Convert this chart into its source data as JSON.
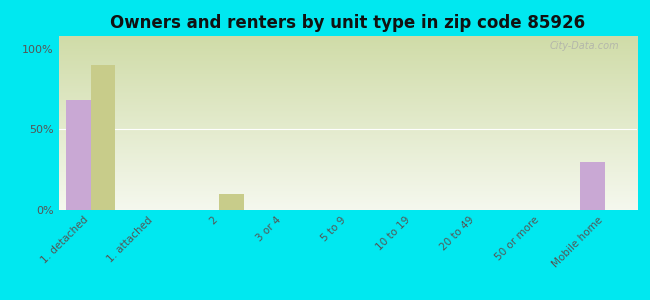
{
  "title": "Owners and renters by unit type in zip code 85926",
  "categories": [
    "1. detached",
    "1. attached",
    "2",
    "3 or 4",
    "5 to 9",
    "10 to 19",
    "20 to 49",
    "50 or more",
    "Mobile home"
  ],
  "owner_values": [
    68,
    0,
    0,
    0,
    0,
    0,
    0,
    0,
    30
  ],
  "renter_values": [
    90,
    0,
    10,
    0,
    0,
    0,
    0,
    0,
    0
  ],
  "owner_color": "#c9a8d4",
  "renter_color": "#c8cc8a",
  "background_outer": "#00e8f0",
  "plot_bg_top": "#dce8c0",
  "plot_bg_bottom": "#f5f8ee",
  "title_fontsize": 12,
  "ylabel_ticks": [
    0,
    50,
    100
  ],
  "ylabel_labels": [
    "0%",
    "50%",
    "100%"
  ],
  "bar_width": 0.38,
  "ylim": [
    0,
    108
  ],
  "watermark": "City-Data.com"
}
